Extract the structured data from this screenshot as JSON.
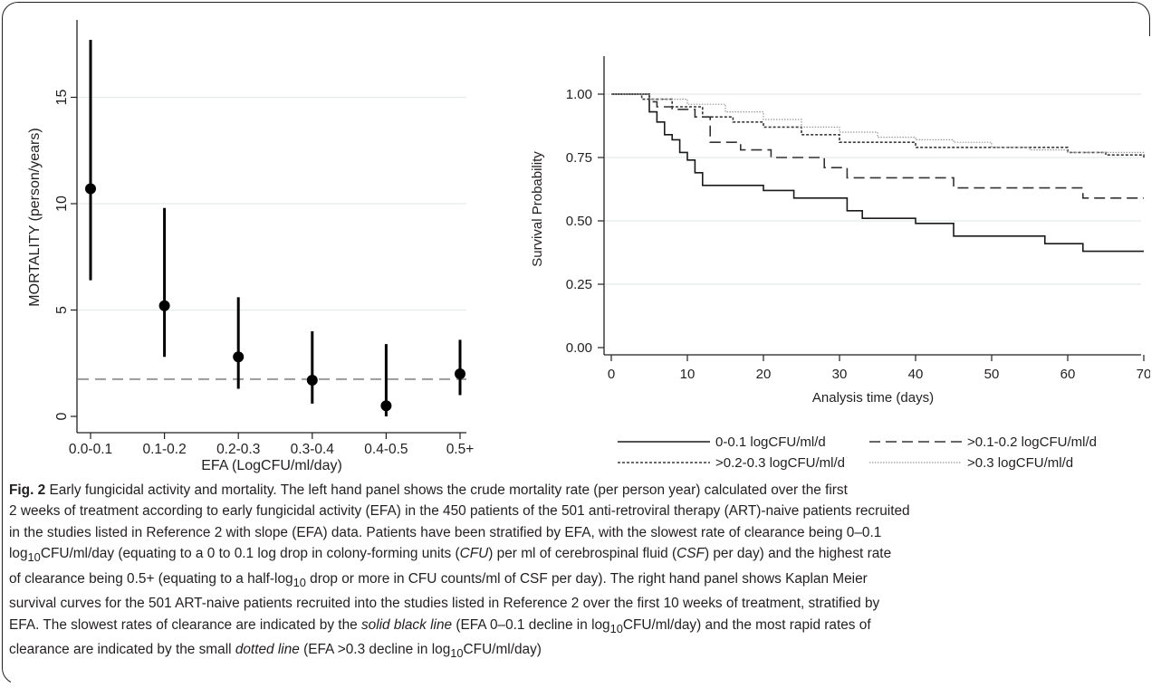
{
  "chart_data": [
    {
      "type": "scatter",
      "xlabel": "EFA (LogCFU/ml/day)",
      "ylabel": "MORTALITY (person/years)",
      "categories": [
        "0.0-0.1",
        "0.1-0.2",
        "0.2-0.3",
        "0.3-0.4",
        "0.4-0.5",
        "0.5+"
      ],
      "values": [
        10.7,
        5.2,
        2.8,
        1.7,
        0.5,
        2.0
      ],
      "ci_lower": [
        6.4,
        2.8,
        1.3,
        0.6,
        0.0,
        1.0
      ],
      "ci_upper": [
        17.7,
        9.8,
        5.6,
        4.0,
        3.4,
        3.6
      ],
      "reference_line": 1.75,
      "yticks": [
        "0",
        "5",
        "10",
        "15"
      ],
      "ylim": [
        0,
        18
      ],
      "grid": true
    },
    {
      "type": "line",
      "step": true,
      "xlabel": "Analysis time (days)",
      "ylabel": "Survival Probability",
      "xticks": [
        "0",
        "10",
        "20",
        "30",
        "40",
        "50",
        "60",
        "70"
      ],
      "yticks": [
        "0.00",
        "0.25",
        "0.50",
        "0.75",
        "1.00"
      ],
      "xlim": [
        0,
        70
      ],
      "ylim": [
        0,
        1
      ],
      "grid": true,
      "legend_position": "bottom",
      "series": [
        {
          "name": "0-0.1 logCFU/ml/d",
          "style": "solid",
          "x": [
            0,
            5,
            6,
            7,
            8,
            9,
            10,
            11,
            12,
            20,
            24,
            31,
            33,
            40,
            45,
            57,
            62,
            70
          ],
          "y": [
            1.0,
            0.93,
            0.89,
            0.84,
            0.82,
            0.77,
            0.74,
            0.69,
            0.64,
            0.62,
            0.59,
            0.54,
            0.51,
            0.49,
            0.44,
            0.41,
            0.38,
            0.38
          ]
        },
        {
          "name": ">0.1-0.2 logCFU/ml/d",
          "style": "dashed",
          "x": [
            0,
            5,
            6,
            8,
            11,
            13,
            17,
            21,
            28,
            31,
            45,
            62,
            70
          ],
          "y": [
            1.0,
            0.97,
            0.95,
            0.94,
            0.91,
            0.81,
            0.78,
            0.75,
            0.71,
            0.67,
            0.63,
            0.59,
            0.59
          ]
        },
        {
          "name": ">0.2-0.3 logCFU/ml/d",
          "style": "dotted",
          "x": [
            0,
            4,
            8,
            12,
            16,
            20,
            25,
            30,
            40,
            50,
            60,
            65,
            70
          ],
          "y": [
            1.0,
            0.98,
            0.95,
            0.91,
            0.89,
            0.87,
            0.84,
            0.81,
            0.79,
            0.79,
            0.77,
            0.76,
            0.75
          ]
        },
        {
          "name": ">0.3 logCFU/ml/d",
          "style": "fine-dotted",
          "x": [
            0,
            5,
            10,
            15,
            20,
            25,
            30,
            35,
            40,
            45,
            50,
            55,
            60,
            65,
            70
          ],
          "y": [
            1.0,
            0.98,
            0.96,
            0.93,
            0.9,
            0.87,
            0.85,
            0.83,
            0.82,
            0.81,
            0.79,
            0.78,
            0.77,
            0.77,
            0.76
          ]
        }
      ]
    }
  ],
  "caption": {
    "label": "Fig. 2",
    "title": "Early fungicidal activity and mortality.",
    "line1": "The left hand panel shows the crude mortality rate (per person year) calculated over the first",
    "line2": "2 weeks of treatment according to early fungicidal activity (EFA) in the 450 patients of the 501 anti-retroviral therapy (ART)-naive patients recruited",
    "line3": "in the studies listed in Reference 2 with slope (EFA) data. Patients have been stratified by EFA, with the slowest rate of clearance being 0–0.1",
    "line4_a": "log",
    "line4_sub": "10",
    "line4_b": "CFU/ml/day (equating to a 0 to 0.1 log drop in colony-forming units (",
    "line4_c": "CFU",
    "line4_d": ") per ml of cerebrospinal fluid (",
    "line4_e": "CSF",
    "line4_f": ") per day) and the highest rate",
    "line5_a": "of clearance being 0.5+ (equating to a half-log",
    "line5_sub": "10",
    "line5_b": " drop or more in CFU counts/ml of CSF per day). The right hand panel shows Kaplan Meier",
    "line6": "survival curves for the 501 ART-naive patients recruited into the studies listed in Reference 2 over the first 10 weeks of treatment, stratified by",
    "line7_a": "EFA. The slowest rates of clearance are indicated by the ",
    "line7_b": "solid black line",
    "line7_c": " (EFA 0–0.1 decline in log",
    "line7_sub": "10",
    "line7_d": "CFU/ml/day) and the most rapid rates of",
    "line8_a": "clearance are indicated by the small ",
    "line8_b": "dotted line",
    "line8_c": " (EFA >0.3 decline in log",
    "line8_sub": "10",
    "line8_d": "CFU/ml/day)"
  }
}
